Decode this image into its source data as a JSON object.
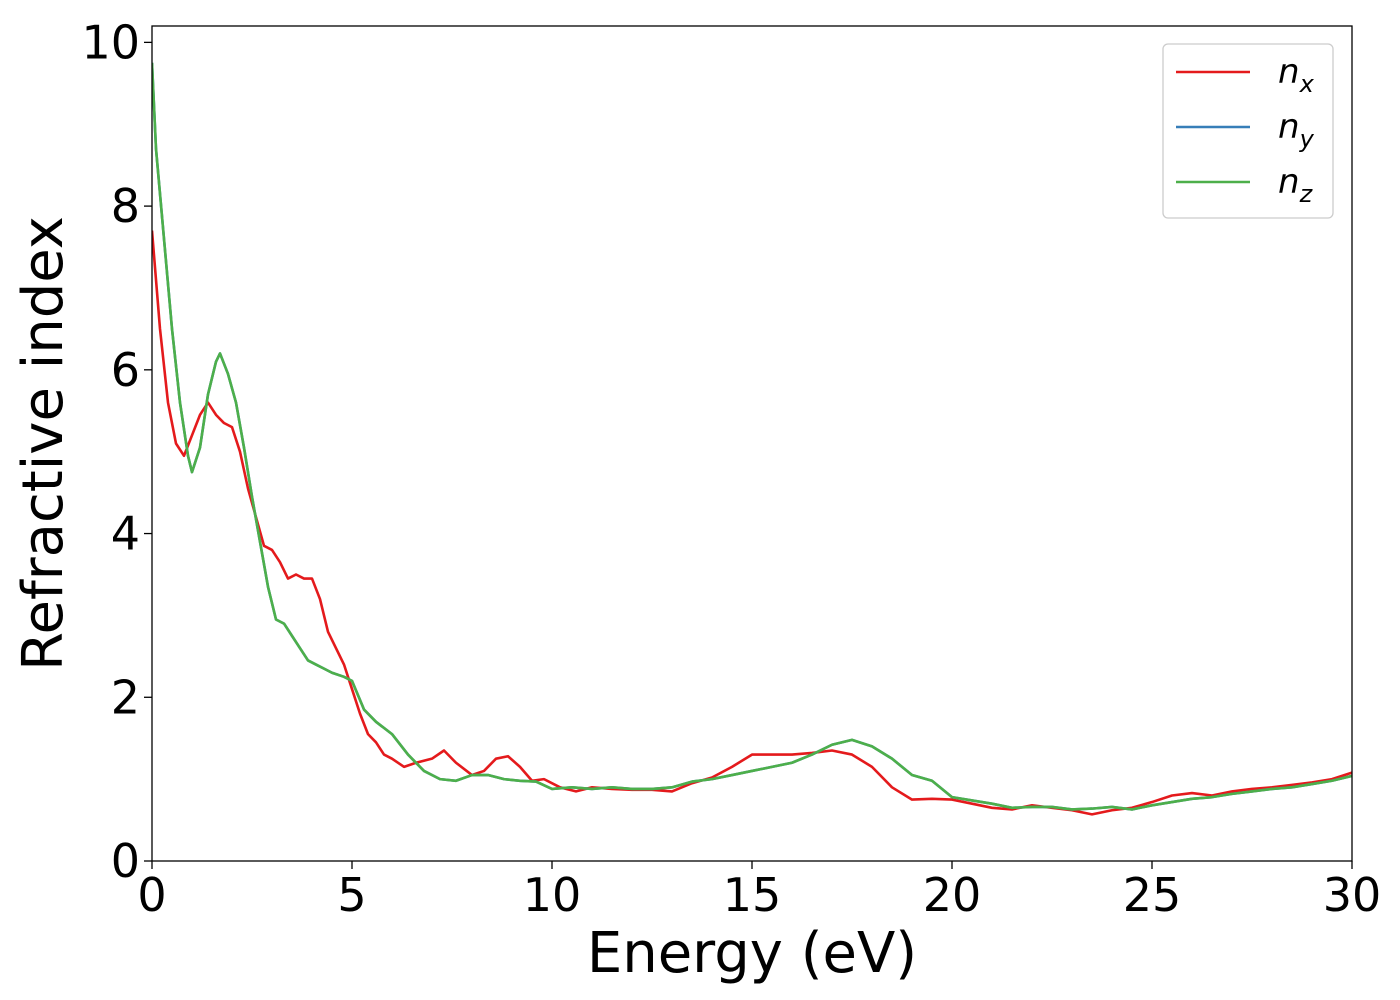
{
  "chart_data": {
    "type": "line",
    "title": "",
    "xlabel": "Energy (eV)",
    "ylabel": "Refractive index",
    "xlim": [
      0,
      30
    ],
    "ylim": [
      0,
      10.2
    ],
    "xticks": [
      0,
      5,
      10,
      15,
      20,
      25,
      30
    ],
    "yticks": [
      0,
      2,
      4,
      6,
      8,
      10
    ],
    "grid": false,
    "legend_position": "top-right",
    "series": [
      {
        "name": "n_x",
        "label_base": "n",
        "label_sub": "x",
        "color": "#e41a1c",
        "x": [
          0,
          0.2,
          0.4,
          0.6,
          0.8,
          1.0,
          1.2,
          1.4,
          1.6,
          1.8,
          2.0,
          2.2,
          2.4,
          2.6,
          2.8,
          3.0,
          3.2,
          3.4,
          3.6,
          3.8,
          4.0,
          4.2,
          4.4,
          4.6,
          4.8,
          5.0,
          5.2,
          5.4,
          5.6,
          5.8,
          6.0,
          6.3,
          6.6,
          7.0,
          7.3,
          7.6,
          8.0,
          8.3,
          8.6,
          8.9,
          9.2,
          9.5,
          9.8,
          10.2,
          10.6,
          11.0,
          11.5,
          12.0,
          12.5,
          13.0,
          13.5,
          14.0,
          14.5,
          15.0,
          15.5,
          16.0,
          16.5,
          17.0,
          17.5,
          18.0,
          18.5,
          19.0,
          19.5,
          20.0,
          20.5,
          21.0,
          21.5,
          22.0,
          22.5,
          23.0,
          23.5,
          24.0,
          24.5,
          25.0,
          25.5,
          26.0,
          26.5,
          27.0,
          27.5,
          28.0,
          28.5,
          29.0,
          29.5,
          30.0
        ],
        "y": [
          7.7,
          6.5,
          5.6,
          5.1,
          4.95,
          5.2,
          5.45,
          5.6,
          5.45,
          5.35,
          5.3,
          5.0,
          4.55,
          4.2,
          3.85,
          3.8,
          3.65,
          3.45,
          3.5,
          3.45,
          3.45,
          3.2,
          2.8,
          2.6,
          2.4,
          2.1,
          1.8,
          1.55,
          1.45,
          1.3,
          1.25,
          1.15,
          1.2,
          1.25,
          1.35,
          1.2,
          1.05,
          1.1,
          1.25,
          1.28,
          1.15,
          0.98,
          1.0,
          0.9,
          0.85,
          0.9,
          0.88,
          0.87,
          0.87,
          0.85,
          0.95,
          1.02,
          1.15,
          1.3,
          1.3,
          1.3,
          1.32,
          1.35,
          1.3,
          1.15,
          0.9,
          0.75,
          0.76,
          0.75,
          0.7,
          0.65,
          0.63,
          0.68,
          0.65,
          0.62,
          0.57,
          0.62,
          0.65,
          0.72,
          0.8,
          0.83,
          0.8,
          0.85,
          0.88,
          0.9,
          0.93,
          0.96,
          1.0,
          1.08
        ]
      },
      {
        "name": "n_y",
        "label_base": "n",
        "label_sub": "y",
        "color": "#377eb8",
        "x": [
          0,
          0.1,
          0.3,
          0.5,
          0.7,
          0.9,
          1.0,
          1.2,
          1.4,
          1.6,
          1.7,
          1.9,
          2.1,
          2.3,
          2.5,
          2.7,
          2.9,
          3.1,
          3.3,
          3.5,
          3.7,
          3.9,
          4.1,
          4.3,
          4.5,
          4.8,
          5.0,
          5.3,
          5.6,
          6.0,
          6.4,
          6.8,
          7.2,
          7.6,
          8.0,
          8.4,
          8.8,
          9.2,
          9.6,
          10.0,
          10.5,
          11.0,
          11.5,
          12.0,
          12.5,
          13.0,
          13.5,
          14.0,
          14.5,
          15.0,
          15.5,
          16.0,
          16.5,
          17.0,
          17.5,
          18.0,
          18.5,
          19.0,
          19.5,
          20.0,
          20.5,
          21.0,
          21.5,
          22.0,
          22.5,
          23.0,
          23.5,
          24.0,
          24.5,
          25.0,
          25.5,
          26.0,
          26.5,
          27.0,
          27.5,
          28.0,
          28.5,
          29.0,
          29.5,
          30.0
        ],
        "y": [
          9.75,
          8.7,
          7.6,
          6.5,
          5.6,
          4.95,
          4.75,
          5.05,
          5.7,
          6.1,
          6.2,
          5.95,
          5.6,
          5.05,
          4.45,
          3.9,
          3.35,
          2.95,
          2.9,
          2.75,
          2.6,
          2.45,
          2.4,
          2.35,
          2.3,
          2.25,
          2.2,
          1.85,
          1.7,
          1.55,
          1.3,
          1.1,
          1.0,
          0.98,
          1.05,
          1.05,
          1.0,
          0.98,
          0.97,
          0.88,
          0.9,
          0.88,
          0.9,
          0.88,
          0.88,
          0.9,
          0.97,
          1.0,
          1.05,
          1.1,
          1.15,
          1.2,
          1.3,
          1.42,
          1.48,
          1.4,
          1.25,
          1.05,
          0.98,
          0.78,
          0.74,
          0.7,
          0.65,
          0.66,
          0.66,
          0.63,
          0.64,
          0.66,
          0.63,
          0.68,
          0.72,
          0.76,
          0.78,
          0.82,
          0.85,
          0.88,
          0.9,
          0.94,
          0.98,
          1.04
        ]
      },
      {
        "name": "n_z",
        "label_base": "n",
        "label_sub": "z",
        "color": "#4daf4a",
        "x": [
          0,
          0.1,
          0.3,
          0.5,
          0.7,
          0.9,
          1.0,
          1.2,
          1.4,
          1.6,
          1.7,
          1.9,
          2.1,
          2.3,
          2.5,
          2.7,
          2.9,
          3.1,
          3.3,
          3.5,
          3.7,
          3.9,
          4.1,
          4.3,
          4.5,
          4.8,
          5.0,
          5.3,
          5.6,
          6.0,
          6.4,
          6.8,
          7.2,
          7.6,
          8.0,
          8.4,
          8.8,
          9.2,
          9.6,
          10.0,
          10.5,
          11.0,
          11.5,
          12.0,
          12.5,
          13.0,
          13.5,
          14.0,
          14.5,
          15.0,
          15.5,
          16.0,
          16.5,
          17.0,
          17.5,
          18.0,
          18.5,
          19.0,
          19.5,
          20.0,
          20.5,
          21.0,
          21.5,
          22.0,
          22.5,
          23.0,
          23.5,
          24.0,
          24.5,
          25.0,
          25.5,
          26.0,
          26.5,
          27.0,
          27.5,
          28.0,
          28.5,
          29.0,
          29.5,
          30.0
        ],
        "y": [
          9.75,
          8.7,
          7.6,
          6.5,
          5.6,
          4.95,
          4.75,
          5.05,
          5.7,
          6.1,
          6.2,
          5.95,
          5.6,
          5.05,
          4.45,
          3.9,
          3.35,
          2.95,
          2.9,
          2.75,
          2.6,
          2.45,
          2.4,
          2.35,
          2.3,
          2.25,
          2.2,
          1.85,
          1.7,
          1.55,
          1.3,
          1.1,
          1.0,
          0.98,
          1.05,
          1.05,
          1.0,
          0.98,
          0.97,
          0.88,
          0.9,
          0.88,
          0.9,
          0.88,
          0.88,
          0.9,
          0.97,
          1.0,
          1.05,
          1.1,
          1.15,
          1.2,
          1.3,
          1.42,
          1.48,
          1.4,
          1.25,
          1.05,
          0.98,
          0.78,
          0.74,
          0.7,
          0.65,
          0.66,
          0.66,
          0.63,
          0.64,
          0.66,
          0.63,
          0.68,
          0.72,
          0.76,
          0.78,
          0.82,
          0.85,
          0.88,
          0.9,
          0.94,
          0.98,
          1.04
        ]
      }
    ]
  }
}
